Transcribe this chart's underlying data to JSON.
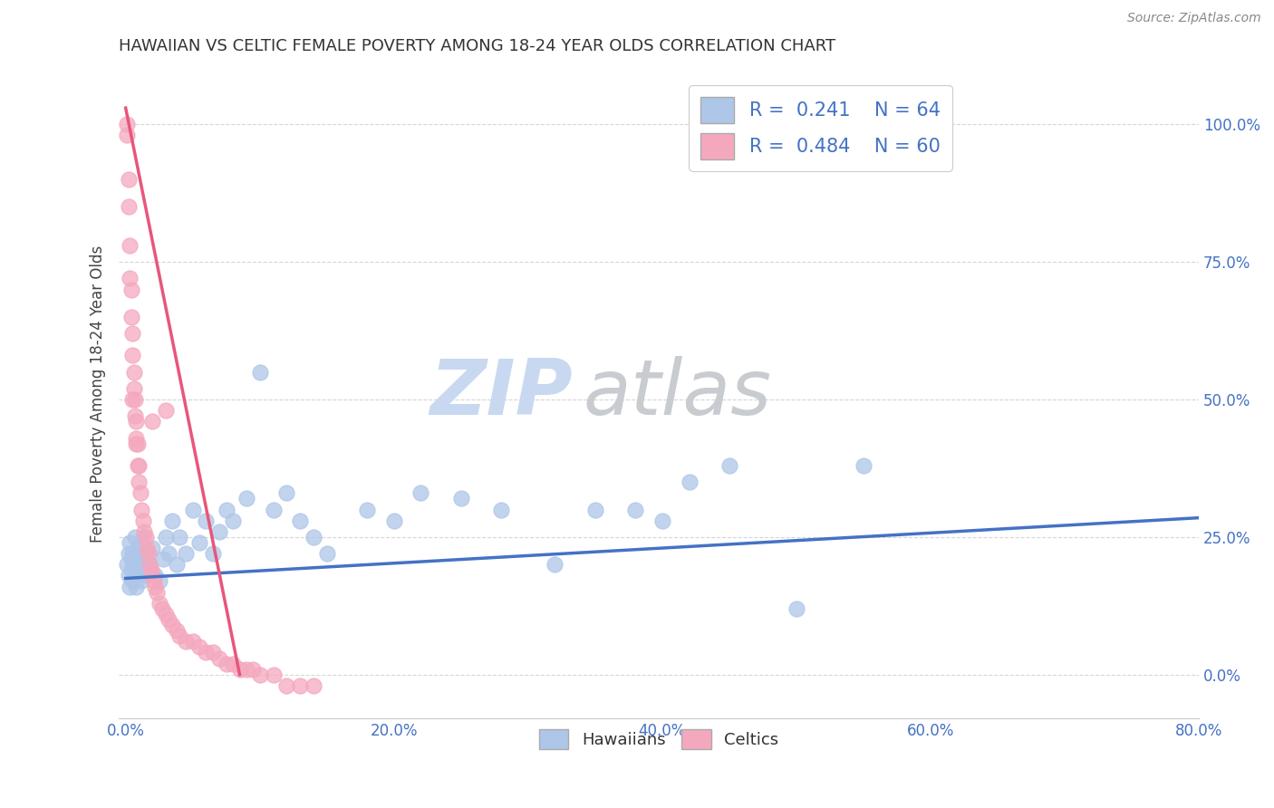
{
  "title": "HAWAIIAN VS CELTIC FEMALE POVERTY AMONG 18-24 YEAR OLDS CORRELATION CHART",
  "source": "Source: ZipAtlas.com",
  "ylabel": "Female Poverty Among 18-24 Year Olds",
  "xlim": [
    -0.005,
    0.8
  ],
  "ylim": [
    -0.08,
    1.1
  ],
  "xticks": [
    0.0,
    0.2,
    0.4,
    0.6,
    0.8
  ],
  "xticklabels": [
    "0.0%",
    "20.0%",
    "40.0%",
    "60.0%",
    "80.0%"
  ],
  "yticks": [
    0.0,
    0.25,
    0.5,
    0.75,
    1.0
  ],
  "yticklabels": [
    "0.0%",
    "25.0%",
    "50.0%",
    "75.0%",
    "100.0%"
  ],
  "hawaiian_color": "#aec6e8",
  "celtic_color": "#f4a8be",
  "hawaiian_line_color": "#4472c4",
  "celtic_line_color": "#e8567a",
  "legend_label_haw": "R =  0.241    N = 64",
  "legend_label_cel": "R =  0.484    N = 60",
  "watermark_zip": "ZIP",
  "watermark_atlas": "atlas",
  "watermark_color_blue": "#c8d8f0",
  "watermark_color_gray": "#c8ccd0",
  "background_color": "#ffffff",
  "grid_color": "#cccccc",
  "title_color": "#333333",
  "axis_label_color": "#444444",
  "tick_color": "#4472c4",
  "haw_line_x": [
    0.0,
    0.8
  ],
  "haw_line_y": [
    0.175,
    0.285
  ],
  "cel_line_x": [
    0.0,
    0.085
  ],
  "cel_line_y": [
    1.03,
    0.0
  ],
  "hawaiian_x": [
    0.001,
    0.002,
    0.002,
    0.003,
    0.003,
    0.004,
    0.004,
    0.005,
    0.005,
    0.006,
    0.006,
    0.007,
    0.007,
    0.008,
    0.008,
    0.009,
    0.009,
    0.01,
    0.01,
    0.011,
    0.012,
    0.013,
    0.014,
    0.015,
    0.016,
    0.017,
    0.018,
    0.02,
    0.022,
    0.025,
    0.028,
    0.03,
    0.032,
    0.035,
    0.038,
    0.04,
    0.045,
    0.05,
    0.055,
    0.06,
    0.065,
    0.07,
    0.075,
    0.08,
    0.09,
    0.1,
    0.11,
    0.12,
    0.13,
    0.14,
    0.15,
    0.18,
    0.2,
    0.22,
    0.25,
    0.28,
    0.32,
    0.35,
    0.38,
    0.4,
    0.42,
    0.45,
    0.5,
    0.55
  ],
  "hawaiian_y": [
    0.2,
    0.22,
    0.18,
    0.16,
    0.24,
    0.19,
    0.21,
    0.17,
    0.22,
    0.2,
    0.18,
    0.25,
    0.22,
    0.19,
    0.16,
    0.21,
    0.23,
    0.18,
    0.2,
    0.22,
    0.17,
    0.25,
    0.2,
    0.18,
    0.22,
    0.19,
    0.2,
    0.23,
    0.18,
    0.17,
    0.21,
    0.25,
    0.22,
    0.28,
    0.2,
    0.25,
    0.22,
    0.3,
    0.24,
    0.28,
    0.22,
    0.26,
    0.3,
    0.28,
    0.32,
    0.55,
    0.3,
    0.33,
    0.28,
    0.25,
    0.22,
    0.3,
    0.28,
    0.33,
    0.32,
    0.3,
    0.2,
    0.3,
    0.3,
    0.28,
    0.35,
    0.38,
    0.12,
    0.38
  ],
  "celtic_x": [
    0.001,
    0.001,
    0.002,
    0.002,
    0.003,
    0.003,
    0.004,
    0.004,
    0.005,
    0.005,
    0.006,
    0.006,
    0.007,
    0.007,
    0.008,
    0.008,
    0.009,
    0.009,
    0.01,
    0.01,
    0.011,
    0.012,
    0.013,
    0.014,
    0.015,
    0.016,
    0.017,
    0.018,
    0.019,
    0.02,
    0.021,
    0.022,
    0.023,
    0.025,
    0.027,
    0.03,
    0.032,
    0.035,
    0.038,
    0.04,
    0.045,
    0.05,
    0.055,
    0.06,
    0.065,
    0.07,
    0.075,
    0.08,
    0.085,
    0.09,
    0.095,
    0.1,
    0.11,
    0.12,
    0.13,
    0.14,
    0.02,
    0.03,
    0.005,
    0.008
  ],
  "celtic_y": [
    0.98,
    1.0,
    0.85,
    0.9,
    0.72,
    0.78,
    0.65,
    0.7,
    0.58,
    0.62,
    0.52,
    0.55,
    0.47,
    0.5,
    0.43,
    0.46,
    0.38,
    0.42,
    0.35,
    0.38,
    0.33,
    0.3,
    0.28,
    0.26,
    0.25,
    0.23,
    0.22,
    0.2,
    0.19,
    0.18,
    0.17,
    0.16,
    0.15,
    0.13,
    0.12,
    0.11,
    0.1,
    0.09,
    0.08,
    0.07,
    0.06,
    0.06,
    0.05,
    0.04,
    0.04,
    0.03,
    0.02,
    0.02,
    0.01,
    0.01,
    0.01,
    0.0,
    0.0,
    -0.02,
    -0.02,
    -0.02,
    0.46,
    0.48,
    0.5,
    0.42
  ]
}
